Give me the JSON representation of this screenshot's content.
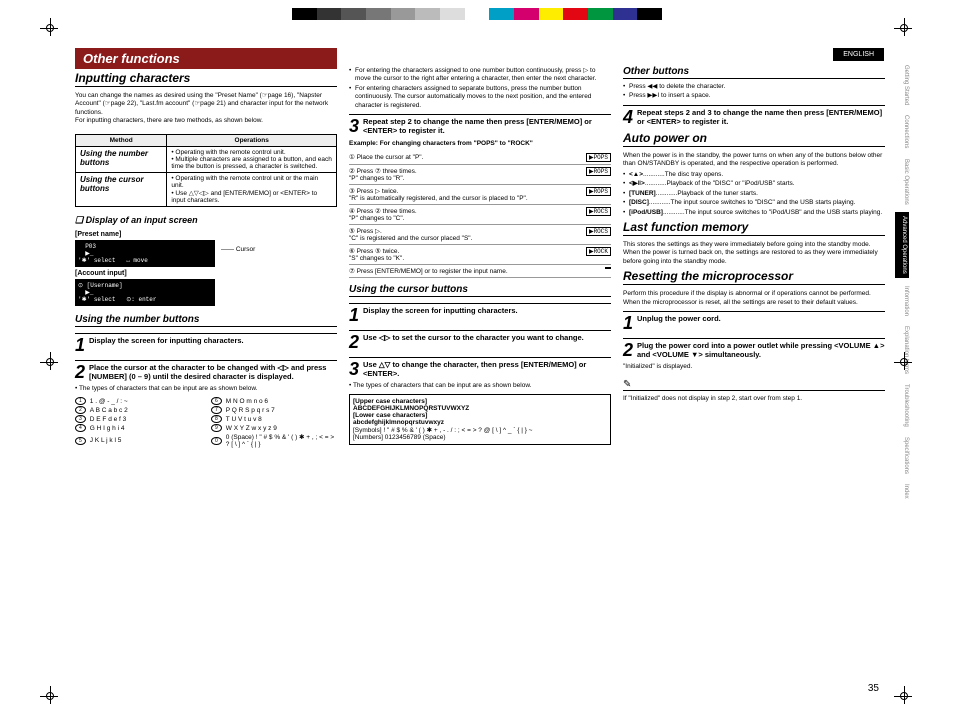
{
  "colorbar": [
    "#000000",
    "#333333",
    "#555555",
    "#777777",
    "#999999",
    "#bbbbbb",
    "#dddddd",
    "#ffffff",
    "#00a0c6",
    "#d4006e",
    "#ffed00",
    "#e30613",
    "#009640",
    "#2e3192",
    "#000000"
  ],
  "lang": "ENGLISH",
  "sidebar": [
    "Getting Started",
    "Connections",
    "Basic Operations",
    "Advanced Operations",
    "Information",
    "Explanation terms",
    "Troubleshooting",
    "Specifications",
    "Index"
  ],
  "sidebar_active": 3,
  "title": "Other functions",
  "col1": {
    "h2": "Inputting characters",
    "intro": "You can change the names as desired using the \"Preset Name\" (☞page 16), \"Napster Account\" (☞page 22), \"Last.fm account\" (☞page 21) and character input for the network functions.\nFor inputting characters, there are two methods, as shown below.",
    "table": {
      "head": [
        "Method",
        "Operations"
      ],
      "rows": [
        {
          "label": "Using the number buttons",
          "ops": "• Operating with the remote control unit.\n• Multiple characters are assigned to a button, and each time the button is pressed, a character is switched."
        },
        {
          "label": "Using the cursor buttons",
          "ops": "• Operating with the remote control unit or the main unit.\n• Use △▽◁▷ and [ENTER/MEMO] or <ENTER> to input characters."
        }
      ]
    },
    "h4a": "❏ Display of an input screen",
    "preset_label": "[Preset name]",
    "preset_screen": "  P03\n  ▶_\n'✱' select   ↔ move",
    "cursor_label": "Cursor",
    "account_label": "[Account input]",
    "account_screen": "⊙ [Username]\n  ▶_\n'✱' select   ⊙: enter",
    "h3a": "Using the number buttons",
    "step1": "Display the screen for inputting characters.",
    "step2": "Place the cursor at the character to be changed with ◁▷ and press [NUMBER] (0 – 9) until the desired character is displayed.",
    "note2": "• The types of characters that can be input are as shown below.",
    "numgrid": [
      [
        "1",
        "1 . @ - _ / : ~"
      ],
      [
        "6",
        "M N O m n o 6"
      ],
      [
        "2",
        "A B C a b c 2"
      ],
      [
        "7",
        "P Q R S p q r s 7"
      ],
      [
        "3",
        "D E F d e f 3"
      ],
      [
        "8",
        "T U V t u v 8"
      ],
      [
        "4",
        "G H I g h i 4"
      ],
      [
        "9",
        "W X Y Z w x y z 9"
      ],
      [
        "5",
        "J K L j k l 5"
      ],
      [
        "0",
        "0 (Space) ! \" # $ % & ' ( ) ✱ + , ; < = > ? [ \\ ] ^ ` { | }"
      ]
    ]
  },
  "col2": {
    "bullets": [
      "For entering the characters assigned to one number button continuously, press ▷ to move the cursor to the right after entering a character, then enter the next character.",
      "For entering characters assigned to separate buttons, press the number button continuously. The cursor automatically moves to the next position, and the entered character is registered."
    ],
    "step3": "Repeat step 2 to change the name then press [ENTER/MEMO] or <ENTER> to register it.",
    "ex_head": "Example: For changing characters from \"POPS\" to \"ROCK\"",
    "ex": [
      {
        "n": "①",
        "t": "Place the cursor at \"P\".",
        "d": "▶POPS"
      },
      {
        "n": "②",
        "t": "Press ⑦ three times.\n\"P\" changes to \"R\".",
        "d": "▶ROPS"
      },
      {
        "n": "③",
        "t": "Press ▷ twice.\n\"R\" is automatically registered, and the cursor is placed to \"P\".",
        "d": "▶ROPS"
      },
      {
        "n": "④",
        "t": "Press ② three times.\n\"P\" changes to \"C\".",
        "d": "▶ROCS"
      },
      {
        "n": "⑤",
        "t": "Press ▷.\n\"C\" is registered and the cursor placed \"S\".",
        "d": "▶ROCS"
      },
      {
        "n": "⑥",
        "t": "Press ⑤ twice.\n\"S\" changes to \"K\".",
        "d": "▶ROCK"
      },
      {
        "n": "⑦",
        "t": "Press [ENTER/MEMO] or <ENTER> to register the input name.",
        "d": ""
      }
    ],
    "h3b": "Using the cursor buttons",
    "cstep1": "Display the screen for inputting characters.",
    "cstep2": "Use ◁▷ to set the cursor to the character you want to change.",
    "cstep3": "Use △▽ to change the character, then press [ENTER/MEMO] or <ENTER>.",
    "cnote": "• The types of characters that can be input are as shown below.",
    "charbox": {
      "upper": "[Upper case characters]\nABCDEFGHIJKLMNOPQRSTUVWXYZ",
      "lower": "[Lower case characters]\nabcdefghijklmnopqrstuvwxyz",
      "symbols": "[Symbols]  ! \" # $ % & ' ( ) ✱ + , - . / : ; < = > ? @ [ \\ ] ^ _ ` { | } ~",
      "numbers": "[Numbers]  0123456789 (Space)"
    }
  },
  "col3": {
    "h3c": "Other buttons",
    "ob": [
      "Press ◀◀ to delete the character.",
      "Press ▶▶Ι to insert a space."
    ],
    "step4": "Repeat steps 2 and 3 to change the name then press [ENTER/MEMO] or <ENTER> to register it.",
    "h2b": "Auto power on",
    "auto_p": "When the power is in the standby, the power turns on when any of the buttons below other than ON/STANDBY is operated, and the respective operation is performed.",
    "auto_list": [
      [
        "<▲>",
        "The disc tray opens."
      ],
      [
        "<▶‖>",
        "Playback of the \"DISC\" or \"iPod/USB\" starts."
      ],
      [
        "[TUNER]",
        "Playback of the tuner starts."
      ],
      [
        "[DISC]",
        "The input source switches to \"DISC\" and the USB starts playing."
      ],
      [
        "[iPod/USB]",
        "The input source switches to \"iPod/USB\" and the USB starts playing."
      ]
    ],
    "h2c": "Last function memory",
    "last_p": "This stores the settings as they were immediately before going into the standby mode.\nWhen the power is turned back on, the settings are restored to as they were immediately before going into the standby mode.",
    "h2d": "Resetting the microprocessor",
    "reset_p": "Perform this procedure if the display is abnormal or if operations cannot be performed.\nWhen the microprocessor is reset, all the settings are reset to their default values.",
    "rstep1": "Unplug the power cord.",
    "rstep2": "Plug the power cord into a power outlet while pressing <VOLUME ▲> and <VOLUME ▼> simultaneously.",
    "rnote": "\"Initialized\" is displayed.",
    "pencil_note": "If \"Initialized\" does not display in step 2, start over from step 1."
  },
  "page_num": "35"
}
